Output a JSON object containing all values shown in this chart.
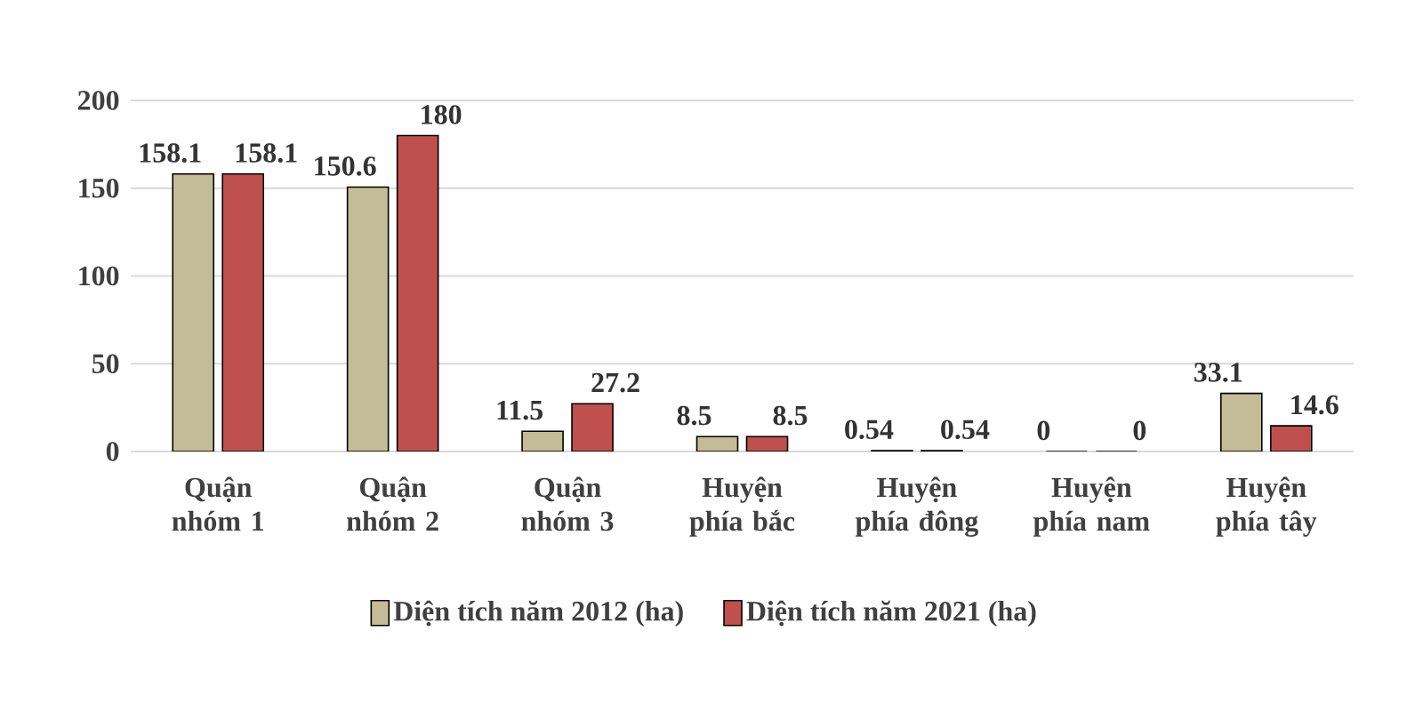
{
  "chart_data": {
    "type": "bar",
    "categories": [
      "Quận nhóm 1",
      "Quận nhóm 2",
      "Quận nhóm 3",
      "Huyện phía bắc",
      "Huyện phía đông",
      "Huyện phía nam",
      "Huyện phía tây"
    ],
    "series": [
      {
        "name": "Diện tích năm 2012 (ha)",
        "color": "#c4bc96",
        "values": [
          158.1,
          150.6,
          11.5,
          8.5,
          0.54,
          0,
          33.1
        ]
      },
      {
        "name": "Diện tích năm 2021 (ha)",
        "color": "#c0504d",
        "values": [
          158.1,
          180,
          27.2,
          8.5,
          0.54,
          0,
          14.6
        ]
      }
    ],
    "ylim": [
      0,
      200
    ],
    "yticks": [
      0,
      50,
      100,
      150,
      200
    ],
    "grid": "y",
    "legend": "bottom",
    "data_labels": true
  }
}
